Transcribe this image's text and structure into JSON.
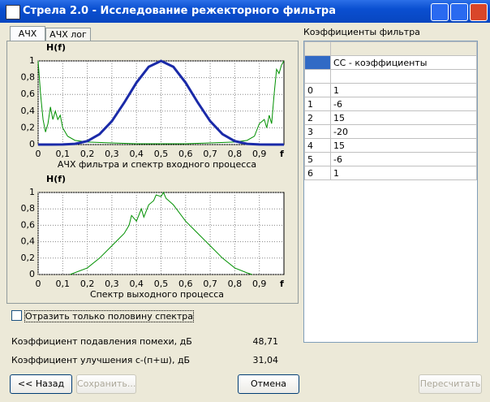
{
  "window": {
    "title": "Стрела 2.0 - Исследование режекторного фильтра"
  },
  "tabs": [
    "АЧХ",
    "АЧХ лог"
  ],
  "charts": [
    {
      "type": "line",
      "y_label": "H(f)",
      "x_label": "f",
      "caption": "АЧХ фильтра и спектр входного процесса",
      "xlim": [
        0,
        1
      ],
      "ylim": [
        0,
        1
      ],
      "grid": true,
      "xticks": [
        0,
        {
          "value": 0.1,
          "label": "0,1"
        },
        {
          "value": 0.2,
          "label": "0,2"
        },
        {
          "value": 0.3,
          "label": "0,3"
        },
        {
          "value": 0.4,
          "label": "0,4"
        },
        {
          "value": 0.5,
          "label": "0,5"
        },
        {
          "value": 0.6,
          "label": "0,6"
        },
        {
          "value": 0.7,
          "label": "0,7"
        },
        {
          "value": 0.8,
          "label": "0,8"
        },
        {
          "value": 0.9,
          "label": "0,9"
        }
      ],
      "yticks": [
        0,
        {
          "value": 0.2,
          "label": "0,2"
        },
        {
          "value": 0.4,
          "label": "0,4"
        },
        {
          "value": 0.6,
          "label": "0,6"
        },
        {
          "value": 0.8,
          "label": "0,8"
        },
        1
      ],
      "series": [
        {
          "color": "#009000",
          "line_width": 1,
          "x": [
            0,
            0.01,
            0.02,
            0.03,
            0.04,
            0.05,
            0.06,
            0.07,
            0.08,
            0.09,
            0.1,
            0.12,
            0.15,
            0.2,
            0.3,
            0.4,
            0.5,
            0.6,
            0.7,
            0.8,
            0.85,
            0.88,
            0.9,
            0.92,
            0.93,
            0.94,
            0.95,
            0.96,
            0.97,
            0.98,
            0.99,
            1
          ],
          "values": [
            1,
            0.6,
            0.3,
            0.15,
            0.25,
            0.45,
            0.3,
            0.4,
            0.3,
            0.35,
            0.2,
            0.1,
            0.05,
            0.03,
            0.02,
            0.01,
            0.01,
            0.01,
            0.02,
            0.03,
            0.05,
            0.1,
            0.25,
            0.3,
            0.2,
            0.35,
            0.25,
            0.6,
            0.9,
            0.85,
            0.95,
            1
          ]
        },
        {
          "color": "#1a2aa8",
          "line_width": 3,
          "x": [
            0,
            0.05,
            0.1,
            0.15,
            0.2,
            0.25,
            0.3,
            0.35,
            0.4,
            0.45,
            0.5,
            0.55,
            0.6,
            0.65,
            0.7,
            0.75,
            0.8,
            0.85,
            0.9,
            0.95,
            1
          ],
          "values": [
            0,
            0,
            0.001,
            0.009,
            0.041,
            0.125,
            0.28,
            0.5,
            0.74,
            0.93,
            1,
            0.93,
            0.74,
            0.5,
            0.28,
            0.125,
            0.041,
            0.009,
            0.001,
            0,
            0
          ]
        }
      ]
    },
    {
      "type": "line",
      "y_label": "H(f)",
      "x_label": "f",
      "caption": "Спектр выходного процесса",
      "xlim": [
        0,
        1
      ],
      "ylim": [
        0,
        1
      ],
      "grid": true,
      "xticks": [
        0,
        {
          "value": 0.1,
          "label": "0,1"
        },
        {
          "value": 0.2,
          "label": "0,2"
        },
        {
          "value": 0.3,
          "label": "0,3"
        },
        {
          "value": 0.4,
          "label": "0,4"
        },
        {
          "value": 0.5,
          "label": "0,5"
        },
        {
          "value": 0.6,
          "label": "0,6"
        },
        {
          "value": 0.7,
          "label": "0,7"
        },
        {
          "value": 0.8,
          "label": "0,8"
        },
        {
          "value": 0.9,
          "label": "0,9"
        }
      ],
      "yticks": [
        0,
        {
          "value": 0.2,
          "label": "0,2"
        },
        {
          "value": 0.4,
          "label": "0,4"
        },
        {
          "value": 0.6,
          "label": "0,6"
        },
        {
          "value": 0.8,
          "label": "0,8"
        },
        1
      ],
      "series": [
        {
          "color": "#009000",
          "line_width": 1,
          "x": [
            0.13,
            0.2,
            0.25,
            0.3,
            0.35,
            0.37,
            0.38,
            0.4,
            0.42,
            0.43,
            0.45,
            0.47,
            0.48,
            0.5,
            0.51,
            0.52,
            0.55,
            0.6,
            0.65,
            0.7,
            0.75,
            0.8,
            0.85,
            0.87
          ],
          "values": [
            0,
            0.08,
            0.2,
            0.35,
            0.5,
            0.6,
            0.72,
            0.65,
            0.8,
            0.7,
            0.85,
            0.9,
            0.97,
            0.95,
            1,
            0.93,
            0.85,
            0.65,
            0.5,
            0.35,
            0.2,
            0.08,
            0.02,
            0
          ]
        }
      ]
    }
  ],
  "coefficients": {
    "label": "Коэффициенты фильтра",
    "header": "СС - коэффициенты",
    "rows": [
      [
        0,
        1
      ],
      [
        1,
        -6
      ],
      [
        2,
        15
      ],
      [
        3,
        -20
      ],
      [
        4,
        15
      ],
      [
        5,
        -6
      ],
      [
        6,
        1
      ]
    ]
  },
  "checkbox": "Отразить только половину спектра",
  "results": [
    {
      "label": "Коэффициент подавления помехи, дБ",
      "value": "48,71"
    },
    {
      "label": "Коэффициент улучшения с-(п+ш), дБ",
      "value": "31,04"
    }
  ],
  "buttons": {
    "back": "<< Назад",
    "save": "Сохранить...",
    "cancel": "Отмена",
    "recalc": "Пересчитать"
  }
}
